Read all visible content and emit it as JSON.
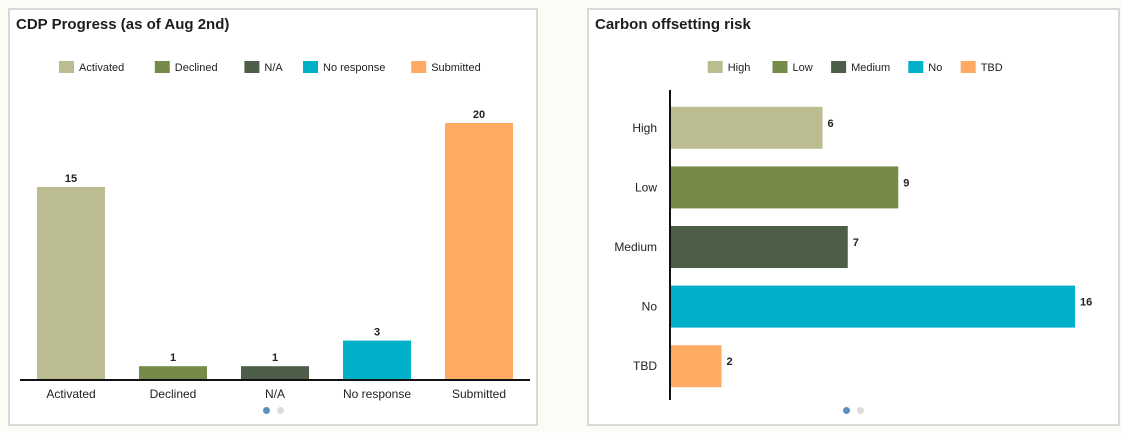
{
  "colors": {
    "Activated": "#bbbc8f",
    "Declined": "#768a4a",
    "N/A": "#4c5d48",
    "No response": "#00b0c8",
    "Submitted": "#ffaa62",
    "High": "#bbbc8f",
    "Low": "#768a4a",
    "Medium": "#4c5d48",
    "No": "#00b0c8",
    "TBD": "#ffaa62"
  },
  "chart_data": [
    {
      "type": "bar",
      "orientation": "vertical",
      "title": "CDP Progress (as of Aug 2nd)",
      "categories": [
        "Activated",
        "Declined",
        "N/A",
        "No response",
        "Submitted"
      ],
      "values": [
        15,
        1,
        1,
        3,
        20
      ],
      "legend": [
        "Activated",
        "Declined",
        "N/A",
        "No response",
        "Submitted"
      ],
      "legend_position": "top",
      "grid": false,
      "ylim": [
        0,
        20
      ]
    },
    {
      "type": "bar",
      "orientation": "horizontal",
      "title": "Carbon offsetting risk",
      "categories": [
        "High",
        "Low",
        "Medium",
        "No",
        "TBD"
      ],
      "values": [
        6,
        9,
        7,
        16,
        2
      ],
      "legend": [
        "High",
        "Low",
        "Medium",
        "No",
        "TBD"
      ],
      "legend_position": "top",
      "grid": false,
      "xlim": [
        0,
        16
      ]
    }
  ],
  "pagination": {
    "pages": 2,
    "current": 1
  }
}
